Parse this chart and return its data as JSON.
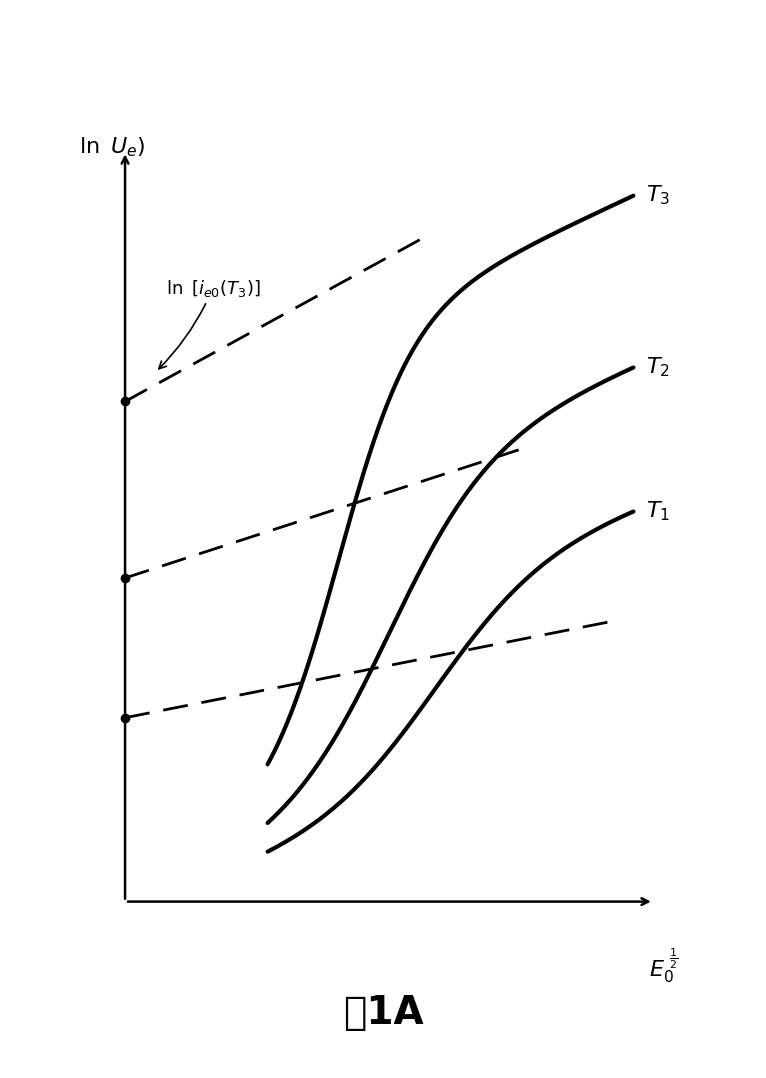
{
  "title": "图1A",
  "background_color": "#ffffff",
  "curve_color": "#000000",
  "dashed_color": "#000000",
  "lw_solid": 3.0,
  "lw_dashed": 2.0,
  "T3_label": "T_3",
  "T2_label": "T_2",
  "T1_label": "T_1",
  "ylabel_text": "ln U_e)",
  "xlabel_text": "E_0^{\\frac{1}{2}}",
  "annotation_text": "ln [i_{e0}(T_3)]",
  "xlim": [
    -0.02,
    1.08
  ],
  "ylim": [
    -0.02,
    1.05
  ]
}
